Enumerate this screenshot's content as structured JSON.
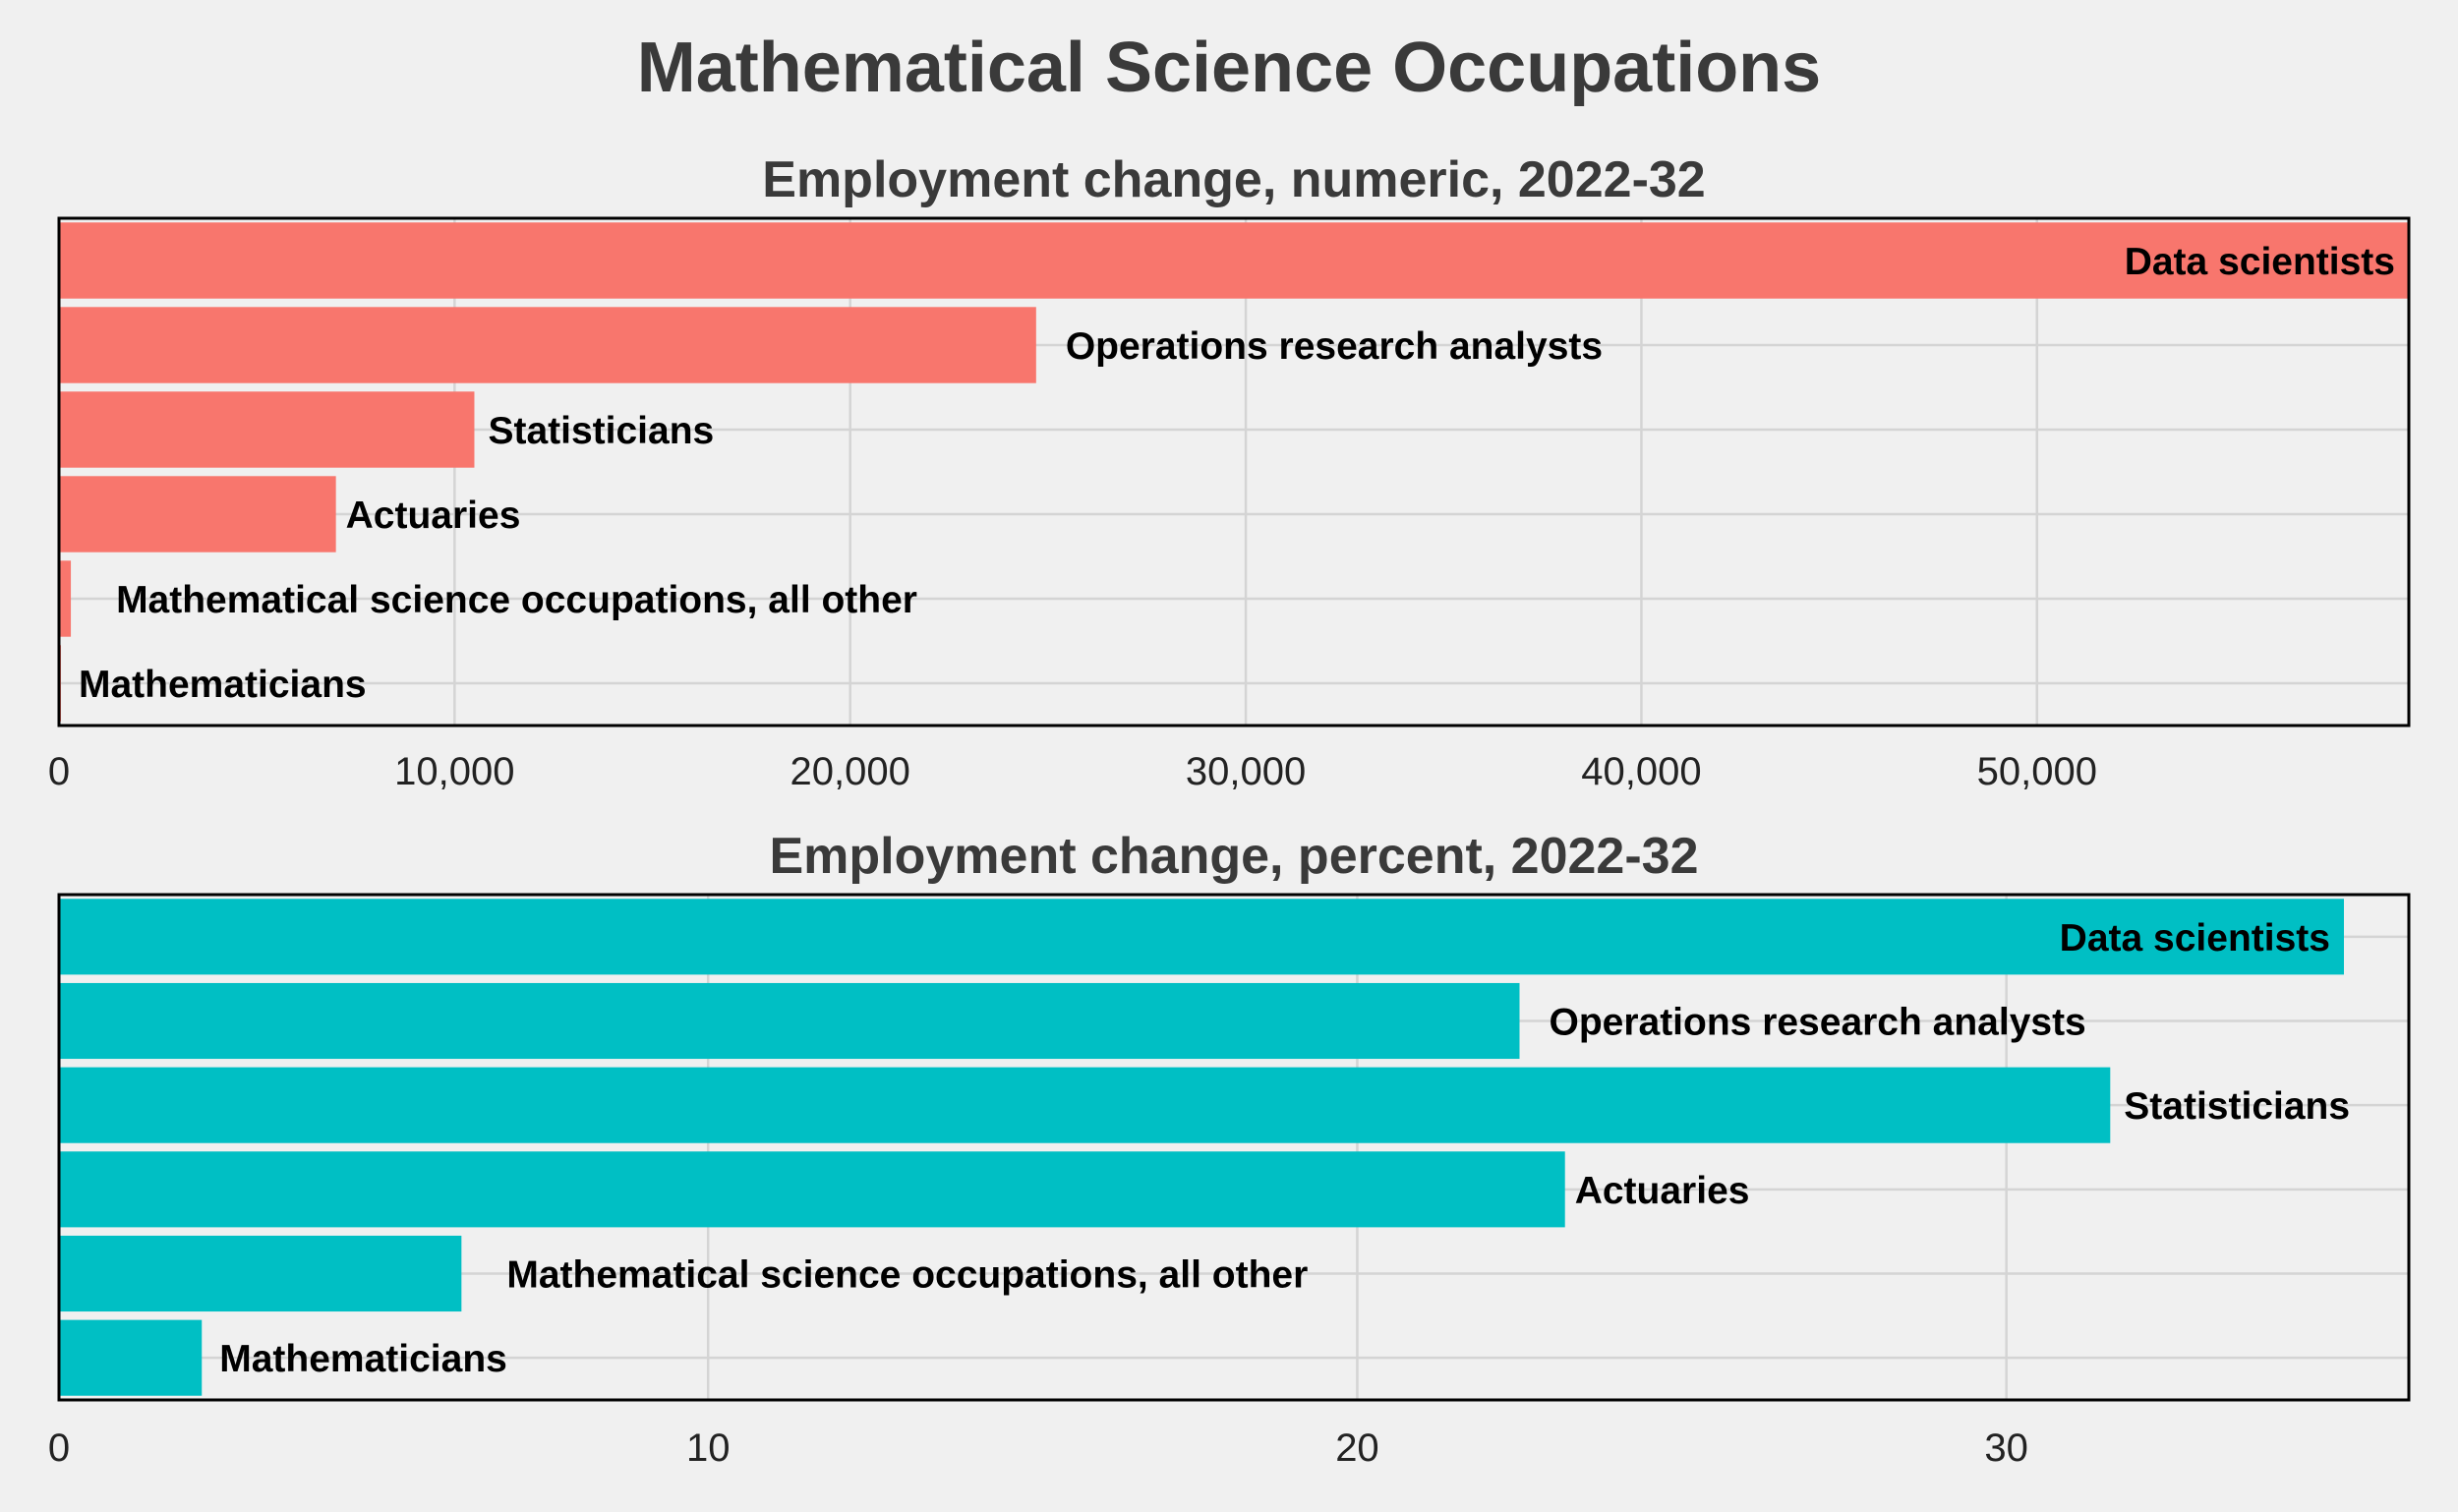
{
  "chart_title": "Mathematical Science Occupations",
  "chart_data": [
    {
      "type": "bar",
      "orientation": "horizontal",
      "title": "Employment change, numeric, 2022-32",
      "xlabel": "",
      "ylabel": "",
      "categories": [
        "Data scientists",
        "Operations research analysts",
        "Statisticians",
        "Actuaries",
        "Mathematical science occupations, all other",
        "Mathematicians"
      ],
      "values": [
        59400,
        24700,
        10500,
        7000,
        300,
        50
      ],
      "xlim": [
        0,
        59400
      ],
      "xticks": [
        0,
        10000,
        20000,
        30000,
        40000,
        50000
      ],
      "xtick_labels": [
        "0",
        "10,000",
        "20,000",
        "30,000",
        "40,000",
        "50,000"
      ],
      "color": "#f8766d",
      "grid": true,
      "legend": "none"
    },
    {
      "type": "bar",
      "orientation": "horizontal",
      "title": "Employment change, percent, 2022-32",
      "xlabel": "",
      "ylabel": "",
      "categories": [
        "Data scientists",
        "Operations research analysts",
        "Statisticians",
        "Actuaries",
        "Mathematical science occupations, all other",
        "Mathematicians"
      ],
      "values": [
        35.2,
        22.5,
        31.6,
        23.2,
        6.2,
        2.2
      ],
      "xlim": [
        0,
        36.2
      ],
      "xticks": [
        0,
        10,
        20,
        30
      ],
      "xtick_labels": [
        "0",
        "10",
        "20",
        "30"
      ],
      "color": "#00bfc4",
      "grid": true,
      "legend": "none"
    }
  ]
}
